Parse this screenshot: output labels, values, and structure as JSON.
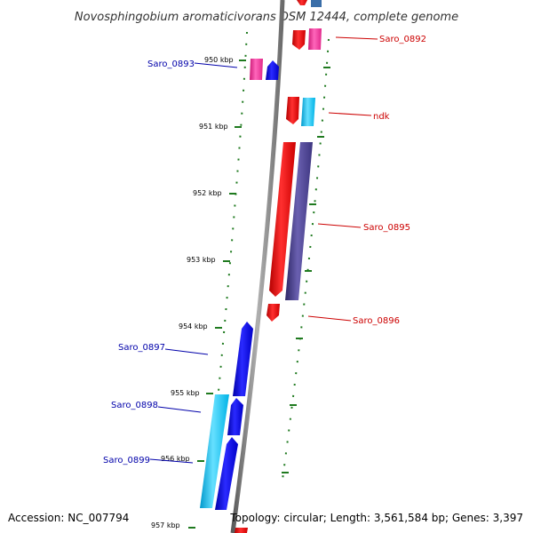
{
  "title": "Novosphingobium aromaticivorans DSM 12444, complete genome",
  "accession": "Accession: NC_007794",
  "topology": "Topology: circular; Length: 3,561,584 bp; Genes: 3,397",
  "colors": {
    "background": "#ffffff",
    "backbone": "#8c8c8c",
    "tick": "#1f7a1f",
    "red_gene": "#ff0000",
    "pink_gene": "#ff3399",
    "blue_gene": "#0000ee",
    "cyan_gene": "#00ccff",
    "purple_gene": "#483d8b",
    "forward_label": "#cc0000",
    "reverse_label": "#0000aa"
  },
  "kbp_ticks": [
    "950 kbp",
    "951 kbp",
    "952 kbp",
    "953 kbp",
    "954 kbp",
    "955 kbp",
    "956 kbp",
    "957 kbp"
  ],
  "gene_labels": [
    {
      "text": "Saro_0892",
      "strand": "forward"
    },
    {
      "text": "Saro_0893",
      "strand": "reverse"
    },
    {
      "text": "ndk",
      "strand": "forward"
    },
    {
      "text": "Saro_0895",
      "strand": "forward"
    },
    {
      "text": "Saro_0896",
      "strand": "forward"
    },
    {
      "text": "Saro_0897",
      "strand": "reverse"
    },
    {
      "text": "Saro_0898",
      "strand": "reverse"
    },
    {
      "text": "Saro_0899",
      "strand": "reverse"
    }
  ]
}
